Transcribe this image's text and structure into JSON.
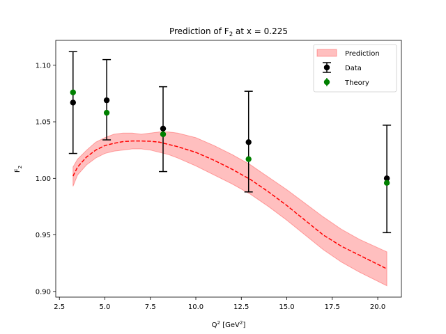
{
  "chart_data": {
    "type": "scatter",
    "title": "Prediction of F_2 at x = 0.225",
    "xlabel": "Q^2 [GeV^2]",
    "ylabel": "F_2",
    "xlim": [
      2.3,
      21.3
    ],
    "ylim": [
      0.895,
      1.122
    ],
    "xticks": [
      2.5,
      5.0,
      7.5,
      10.0,
      12.5,
      15.0,
      17.5,
      20.0
    ],
    "xtick_labels": [
      "2.5",
      "5.0",
      "7.5",
      "10.0",
      "12.5",
      "15.0",
      "17.5",
      "20.0"
    ],
    "yticks": [
      0.9,
      0.95,
      1.0,
      1.05,
      1.1
    ],
    "ytick_labels": [
      "0.90",
      "0.95",
      "1.00",
      "1.05",
      "1.10"
    ],
    "grid": false,
    "legend_position": "top-right",
    "series": [
      {
        "name": "Prediction",
        "kind": "band",
        "color": "#ff0000",
        "x": [
          3.25,
          3.5,
          4.0,
          4.5,
          5.0,
          5.5,
          6.0,
          6.5,
          7.0,
          7.5,
          8.0,
          8.5,
          9.0,
          10.0,
          11.0,
          12.0,
          13.0,
          14.0,
          15.0,
          16.0,
          17.0,
          18.0,
          19.0,
          20.5
        ],
        "center": [
          1.002,
          1.01,
          1.019,
          1.025,
          1.029,
          1.031,
          1.0325,
          1.033,
          1.033,
          1.0328,
          1.032,
          1.03,
          1.028,
          1.023,
          1.016,
          1.008,
          0.999,
          0.988,
          0.976,
          0.963,
          0.95,
          0.94,
          0.932,
          0.92
        ],
        "upper": [
          1.01,
          1.017,
          1.025,
          1.032,
          1.036,
          1.039,
          1.04,
          1.04,
          1.039,
          1.04,
          1.041,
          1.041,
          1.04,
          1.036,
          1.029,
          1.021,
          1.012,
          1.001,
          0.99,
          0.978,
          0.966,
          0.955,
          0.946,
          0.935
        ],
        "lower": [
          0.993,
          1.003,
          1.012,
          1.018,
          1.022,
          1.024,
          1.025,
          1.026,
          1.026,
          1.025,
          1.023,
          1.021,
          1.018,
          1.011,
          1.003,
          0.995,
          0.986,
          0.975,
          0.963,
          0.95,
          0.937,
          0.926,
          0.917,
          0.905
        ]
      },
      {
        "name": "Data",
        "kind": "errorbar",
        "color": "#000000",
        "x": [
          3.25,
          5.1,
          8.2,
          12.9,
          20.5
        ],
        "y": [
          1.067,
          1.069,
          1.044,
          1.032,
          1.0
        ],
        "yerr_low": [
          0.045,
          0.035,
          0.038,
          0.044,
          0.048
        ],
        "yerr_high": [
          0.045,
          0.036,
          0.037,
          0.045,
          0.047
        ]
      },
      {
        "name": "Theory",
        "kind": "points",
        "color": "#008000",
        "x": [
          3.25,
          5.1,
          8.2,
          12.9,
          20.5
        ],
        "y": [
          1.076,
          1.058,
          1.039,
          1.017,
          0.996
        ]
      }
    ]
  }
}
